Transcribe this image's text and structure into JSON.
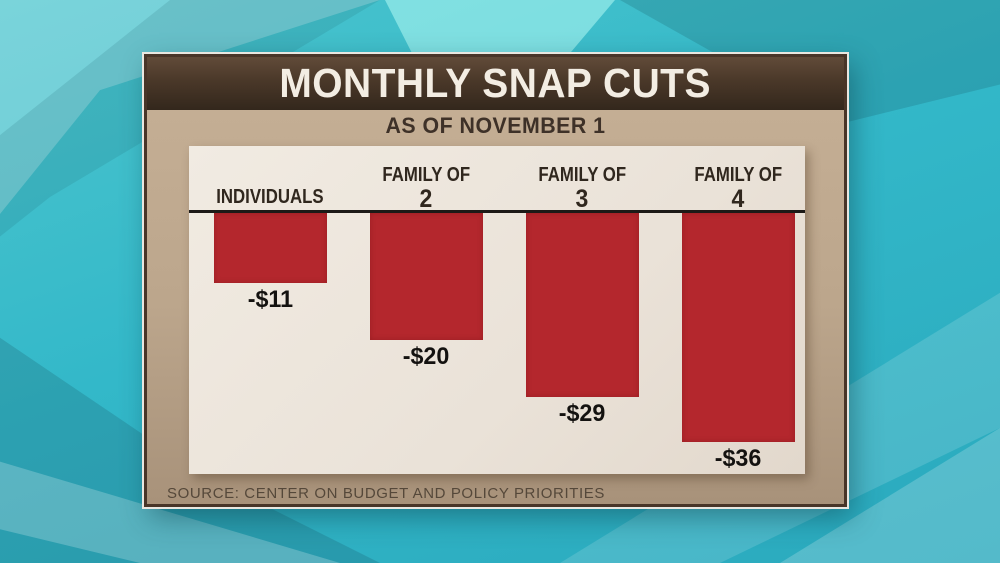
{
  "chart_data": {
    "type": "bar",
    "title": "MONTHLY SNAP CUTS",
    "subtitle": "AS OF NOVEMBER 1",
    "source": "SOURCE: CENTER ON BUDGET AND POLICY PRIORITIES",
    "categories": [
      "INDIVIDUALS",
      "FAMILY OF 2",
      "FAMILY OF 3",
      "FAMILY OF 4"
    ],
    "values": [
      -11,
      -20,
      -29,
      -36
    ],
    "value_labels": [
      "-$11",
      "-$20",
      "-$29",
      "-$36"
    ],
    "columns": [
      {
        "header_line1": "INDIVIDUALS",
        "header_line2": "",
        "value": -11,
        "label": "-$11",
        "slug": "individuals"
      },
      {
        "header_line1": "FAMILY OF",
        "header_line2": "2",
        "value": -20,
        "label": "-$20",
        "slug": "family-of-2"
      },
      {
        "header_line1": "FAMILY OF",
        "header_line2": "3",
        "value": -29,
        "label": "-$29",
        "slug": "family-of-3"
      },
      {
        "header_line1": "FAMILY OF",
        "header_line2": "4",
        "value": -36,
        "label": "-$36",
        "slug": "family-of-4"
      }
    ],
    "orientation": "vertical-below-baseline",
    "ylim": [
      -40,
      0
    ],
    "grid": false,
    "legend": "none",
    "xlabel": "",
    "ylabel": ""
  },
  "colors": {
    "bar_red": "#b4272d",
    "baseline_black": "#1d1a17",
    "title_bar_brown": "#4a3829",
    "card_tan": "#bca68c",
    "plot_panel_cream": "#ece4da",
    "title_text": "#f3ede3",
    "header_text": "#30271e",
    "source_text": "#55483a",
    "background_teal": "#33b8c9"
  }
}
